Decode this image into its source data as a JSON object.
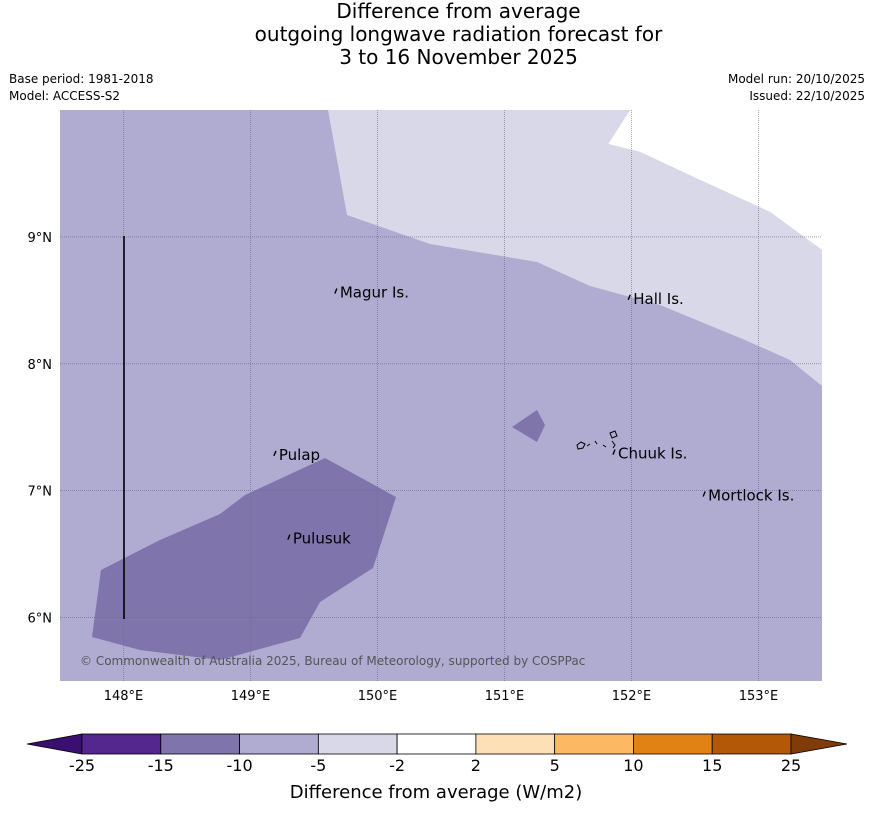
{
  "title": {
    "line1": "Difference from average",
    "line2": "outgoing longwave radiation forecast for",
    "line3": "3 to 16 November 2025"
  },
  "meta": {
    "base_period": "Base period: 1981-2018",
    "model": "Model: ACCESS-S2",
    "model_run": "Model run: 20/10/2025",
    "issued": "Issued: 22/10/2025"
  },
  "map": {
    "lon_range": [
      147.5,
      153.5
    ],
    "lat_range": [
      5.5,
      10.0
    ],
    "lon_ticks": [
      "148°E",
      "149°E",
      "150°E",
      "151°E",
      "152°E",
      "153°E"
    ],
    "lat_ticks": [
      "9°N",
      "8°N",
      "7°N",
      "6°N"
    ],
    "copyright": "© Commonwealth of Australia 2025, Bureau of Meteorology, supported by COSPPac",
    "places": [
      {
        "name": "Magur Is.",
        "lon": 149.68,
        "lat": 8.57
      },
      {
        "name": "Hall Is.",
        "lon": 151.99,
        "lat": 8.52
      },
      {
        "name": "Pulap",
        "lon": 149.2,
        "lat": 7.29
      },
      {
        "name": "Chuuk Is.",
        "lon": 151.87,
        "lat": 7.3
      },
      {
        "name": "Mortlock Is.",
        "lon": 152.58,
        "lat": 6.97
      },
      {
        "name": "Pulusuk",
        "lon": 149.31,
        "lat": 6.63
      }
    ],
    "colors": {
      "base": "#b0abd1",
      "light": "#d8d8e9",
      "dark": "#7f75ac"
    }
  },
  "colorbar": {
    "title": "Difference from average (W/m2)",
    "ticks": [
      "-25",
      "-15",
      "-10",
      "-5",
      "-2",
      "2",
      "5",
      "10",
      "15",
      "25"
    ],
    "colors": [
      "#3b0f6f",
      "#54278f",
      "#7f75ac",
      "#b0abd1",
      "#d8d8e9",
      "#ffffff",
      "#fee0b6",
      "#fdb863",
      "#e08214",
      "#b35806",
      "#7f3b08"
    ]
  }
}
